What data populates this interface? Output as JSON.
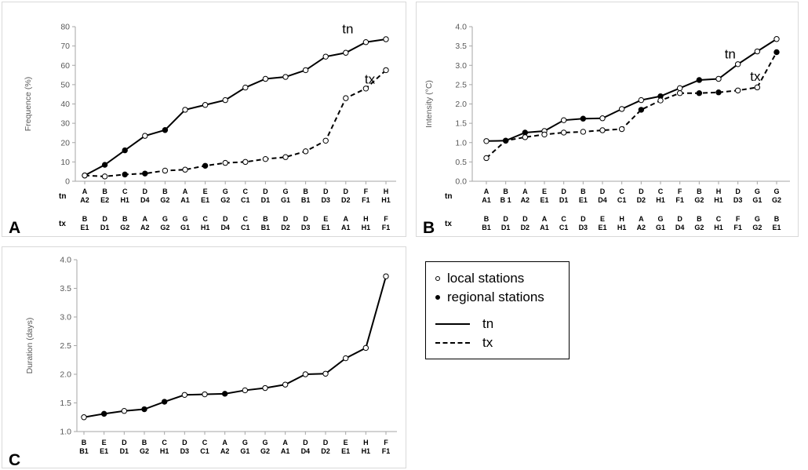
{
  "panels": [
    {
      "letter": "A",
      "ylabel": "Frequence (%)",
      "yticks": [
        "0",
        "10",
        "20",
        "30",
        "40",
        "50",
        "60",
        "70",
        "80"
      ],
      "ymin": 0,
      "ymax": 80,
      "row1_label": "tn",
      "row2_label": "tx",
      "row1": [
        [
          "A",
          "A2"
        ],
        [
          "B",
          "E2"
        ],
        [
          "C",
          "H1"
        ],
        [
          "D",
          "D4"
        ],
        [
          "B",
          "G2"
        ],
        [
          "A",
          "A1"
        ],
        [
          "E",
          "E1"
        ],
        [
          "G",
          "G2"
        ],
        [
          "C",
          "C1"
        ],
        [
          "D",
          "D1"
        ],
        [
          "G",
          "G1"
        ],
        [
          "B",
          "B1"
        ],
        [
          "D",
          "D3"
        ],
        [
          "D",
          "D2"
        ],
        [
          "F",
          "F1"
        ],
        [
          "H",
          "H1"
        ]
      ],
      "row2": [
        [
          "B",
          "E1"
        ],
        [
          "D",
          "D1"
        ],
        [
          "B",
          "G2"
        ],
        [
          "A",
          "A2"
        ],
        [
          "G",
          "G2"
        ],
        [
          "G",
          "G1"
        ],
        [
          "C",
          "H1"
        ],
        [
          "D",
          "D4"
        ],
        [
          "C",
          "C1"
        ],
        [
          "B",
          "B1"
        ],
        [
          "D",
          "D2"
        ],
        [
          "D",
          "D3"
        ],
        [
          "E",
          "E1"
        ],
        [
          "A",
          "A1"
        ],
        [
          "H",
          "H1"
        ],
        [
          "F",
          "F1"
        ]
      ],
      "series_labels": [
        {
          "text": "tn",
          "x": 13.1,
          "y": 76.5
        },
        {
          "text": "tx",
          "x": 14.2,
          "y": 50.5
        }
      ]
    },
    {
      "letter": "B",
      "ylabel": "Intensity (°C)",
      "yticks": [
        "0.0",
        "0.5",
        "1.0",
        "1.5",
        "2.0",
        "2.5",
        "3.0",
        "3.5",
        "4.0"
      ],
      "ymin": 0,
      "ymax": 4,
      "row1_label": "tn",
      "row2_label": "tx",
      "row1": [
        [
          "A",
          "A1"
        ],
        [
          "B",
          "B 1"
        ],
        [
          "A",
          "A2"
        ],
        [
          "E",
          "E1"
        ],
        [
          "D",
          "D1"
        ],
        [
          "B",
          "E1"
        ],
        [
          "D",
          "D4"
        ],
        [
          "C",
          "C1"
        ],
        [
          "D",
          "D2"
        ],
        [
          "C",
          "H1"
        ],
        [
          "F",
          "F1"
        ],
        [
          "B",
          "G2"
        ],
        [
          "H",
          "H1"
        ],
        [
          "D",
          "D3"
        ],
        [
          "G",
          "G1"
        ],
        [
          "G",
          "G2"
        ]
      ],
      "row2": [
        [
          "B",
          "B1"
        ],
        [
          "D",
          "D1"
        ],
        [
          "D",
          "D2"
        ],
        [
          "A",
          "A1"
        ],
        [
          "C",
          "C1"
        ],
        [
          "D",
          "D3"
        ],
        [
          "E",
          "E1"
        ],
        [
          "H",
          "H1"
        ],
        [
          "A",
          "A2"
        ],
        [
          "G",
          "G1"
        ],
        [
          "D",
          "D4"
        ],
        [
          "B",
          "G2"
        ],
        [
          "C",
          "H1"
        ],
        [
          "F",
          "F1"
        ],
        [
          "G",
          "G2"
        ],
        [
          "B",
          "E1"
        ]
      ],
      "series_labels": [
        {
          "text": "tn",
          "x": 12.6,
          "y": 3.18
        },
        {
          "text": "tx",
          "x": 13.9,
          "y": 2.6
        }
      ]
    },
    {
      "letter": "C",
      "ylabel": "Duration (days)",
      "yticks": [
        "1.0",
        "1.5",
        "2.0",
        "2.5",
        "3.0",
        "3.5",
        "4.0"
      ],
      "ymin": 1,
      "ymax": 4,
      "row1": [
        [
          "B",
          "B1"
        ],
        [
          "E",
          "E1"
        ],
        [
          "D",
          "D1"
        ],
        [
          "B",
          "G2"
        ],
        [
          "C",
          "H1"
        ],
        [
          "D",
          "D3"
        ],
        [
          "C",
          "C1"
        ],
        [
          "A",
          "A2"
        ],
        [
          "G",
          "G1"
        ],
        [
          "G",
          "G2"
        ],
        [
          "A",
          "A1"
        ],
        [
          "D",
          "D4"
        ],
        [
          "D",
          "D2"
        ],
        [
          "E",
          "E1"
        ],
        [
          "H",
          "H1"
        ],
        [
          "F",
          "F1"
        ]
      ]
    }
  ],
  "legend": {
    "local": "local stations",
    "regional": "regional stations",
    "tn": "tn",
    "tx": "tx"
  },
  "chart_data": [
    {
      "type": "line",
      "title": "",
      "xlabel": "",
      "ylabel": "Frequence (%)",
      "ylim": [
        0,
        80
      ],
      "categories": [
        "1",
        "2",
        "3",
        "4",
        "5",
        "6",
        "7",
        "8",
        "9",
        "10",
        "11",
        "12",
        "13",
        "14",
        "15",
        "16"
      ],
      "series": [
        {
          "name": "tn",
          "style": "solid",
          "values": [
            3,
            8.5,
            16,
            23.5,
            26.5,
            37,
            39.5,
            42,
            48.5,
            53,
            54,
            57.5,
            64.5,
            66.5,
            72,
            73.5
          ],
          "markers": [
            "filled",
            "filled",
            "filled",
            "open",
            "filled",
            "open",
            "open",
            "open",
            "open",
            "open",
            "open",
            "open",
            "open",
            "open",
            "open",
            "open"
          ]
        },
        {
          "name": "tx",
          "style": "dashed",
          "values": [
            3,
            2.5,
            3.5,
            4,
            5.5,
            6,
            8,
            9.5,
            10,
            11.5,
            12.5,
            15.5,
            21,
            43,
            48,
            57.5
          ],
          "markers": [
            "open",
            "open",
            "filled",
            "filled",
            "open",
            "open",
            "filled",
            "open",
            "open",
            "open",
            "open",
            "open",
            "open",
            "open",
            "open",
            "open"
          ]
        }
      ]
    },
    {
      "type": "line",
      "title": "",
      "xlabel": "",
      "ylabel": "Intensity (°C)",
      "ylim": [
        0,
        4
      ],
      "categories": [
        "1",
        "2",
        "3",
        "4",
        "5",
        "6",
        "7",
        "8",
        "9",
        "10",
        "11",
        "12",
        "13",
        "14",
        "15",
        "16"
      ],
      "series": [
        {
          "name": "tn",
          "style": "solid",
          "values": [
            1.04,
            1.05,
            1.26,
            1.3,
            1.58,
            1.62,
            1.63,
            1.87,
            2.1,
            2.2,
            2.41,
            2.62,
            2.65,
            3.03,
            3.36,
            3.68
          ],
          "markers": [
            "open",
            "open",
            "filled",
            "open",
            "open",
            "filled",
            "open",
            "open",
            "open",
            "filled",
            "open",
            "filled",
            "open",
            "open",
            "open",
            "open"
          ]
        },
        {
          "name": "tx",
          "style": "dashed",
          "values": [
            0.6,
            1.05,
            1.14,
            1.21,
            1.26,
            1.28,
            1.32,
            1.35,
            1.85,
            2.09,
            2.28,
            2.28,
            2.3,
            2.35,
            2.43,
            3.34
          ],
          "markers": [
            "open",
            "filled",
            "open",
            "open",
            "open",
            "open",
            "open",
            "open",
            "filled",
            "open",
            "open",
            "filled",
            "filled",
            "open",
            "open",
            "filled"
          ]
        }
      ]
    },
    {
      "type": "line",
      "title": "",
      "xlabel": "",
      "ylabel": "Duration (days)",
      "ylim": [
        1,
        4
      ],
      "categories": [
        "1",
        "2",
        "3",
        "4",
        "5",
        "6",
        "7",
        "8",
        "9",
        "10",
        "11",
        "12",
        "13",
        "14",
        "15",
        "16"
      ],
      "series": [
        {
          "name": "",
          "style": "solid",
          "values": [
            1.25,
            1.31,
            1.36,
            1.39,
            1.52,
            1.64,
            1.65,
            1.66,
            1.72,
            1.76,
            1.82,
            2.0,
            2.01,
            2.28,
            2.46,
            3.71
          ],
          "markers": [
            "open",
            "filled",
            "open",
            "filled",
            "filled",
            "open",
            "open",
            "filled",
            "open",
            "open",
            "open",
            "open",
            "open",
            "open",
            "open",
            "open"
          ]
        }
      ]
    }
  ]
}
